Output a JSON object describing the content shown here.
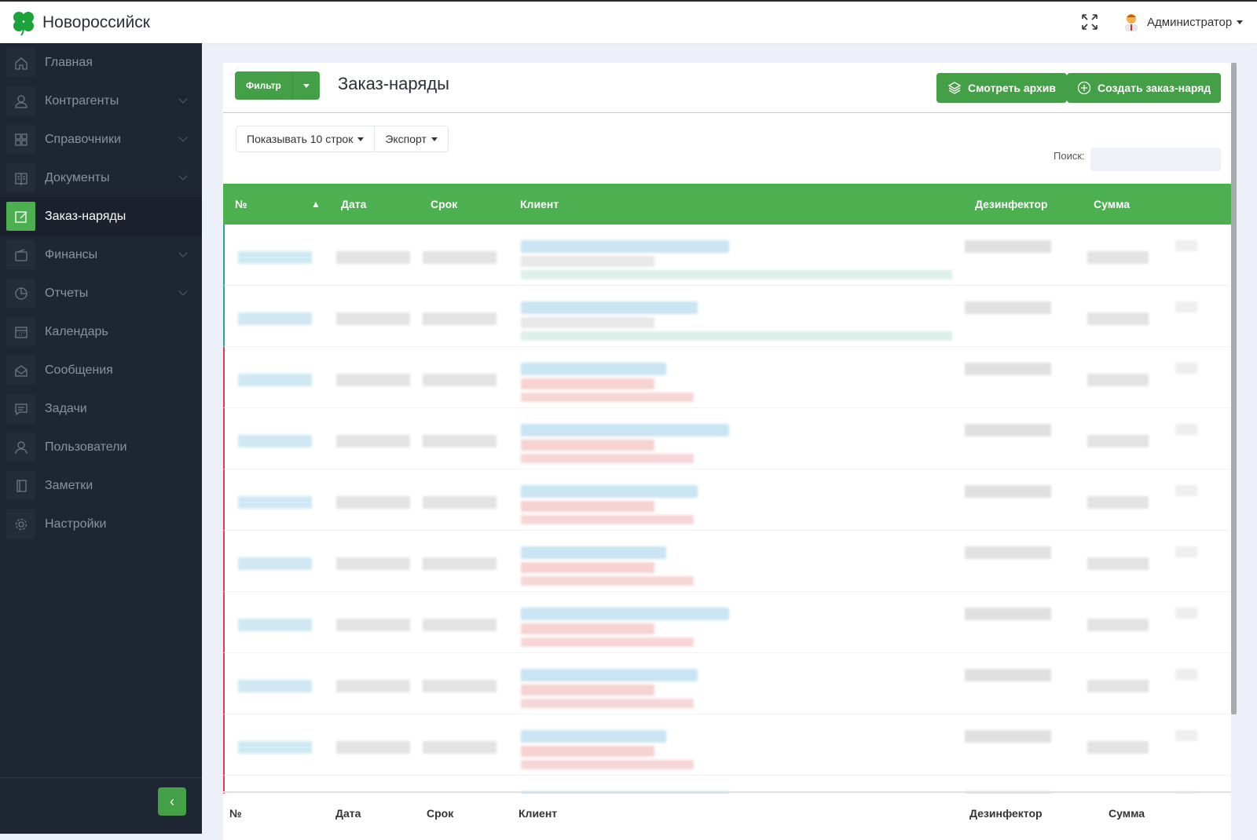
{
  "header": {
    "brand": "Новороссийск",
    "user": "Администратор",
    "brand_color": "#1aa33a"
  },
  "sidebar": {
    "items": [
      {
        "label": "Главная",
        "icon": "home-icon",
        "sub": false
      },
      {
        "label": "Контрагенты",
        "icon": "users-icon",
        "sub": true
      },
      {
        "label": "Справочники",
        "icon": "grid-icon",
        "sub": true
      },
      {
        "label": "Документы",
        "icon": "book-icon",
        "sub": true
      },
      {
        "label": "Заказ-наряды",
        "icon": "edit-icon",
        "sub": false,
        "active": true
      },
      {
        "label": "Финансы",
        "icon": "wallet-icon",
        "sub": true
      },
      {
        "label": "Отчеты",
        "icon": "pie-chart-icon",
        "sub": true
      },
      {
        "label": "Календарь",
        "icon": "calendar-icon",
        "sub": false
      },
      {
        "label": "Сообщения",
        "icon": "mail-icon",
        "sub": false
      },
      {
        "label": "Задачи",
        "icon": "chat-icon",
        "sub": false
      },
      {
        "label": "Пользователи",
        "icon": "user-icon",
        "sub": false
      },
      {
        "label": "Заметки",
        "icon": "notebook-icon",
        "sub": false
      },
      {
        "label": "Настройки",
        "icon": "gear-icon",
        "sub": false
      }
    ]
  },
  "main": {
    "title": "Заказ-наряды",
    "filter_label": "Фильтр",
    "archive_label": "Смотреть архив",
    "create_label": "Создать заказ-наряд",
    "page_length": "Показывать 10 строк",
    "export_label": "Экспорт",
    "search_label": "Поиск:",
    "search_value": "",
    "columns": [
      "№",
      "Дата",
      "Срок",
      "Клиент",
      "Дезинфектор",
      "Сумма"
    ],
    "sort_indicator": "▲",
    "row_status_colors": [
      "#26a69a",
      "#26a69a",
      "#e53950",
      "#e53950",
      "#e53950",
      "#e53950",
      "#e53950",
      "#e53950",
      "#e53950",
      "#e53950"
    ]
  },
  "colors": {
    "accent": "#4caf50",
    "sidebar": "#1f2633"
  }
}
